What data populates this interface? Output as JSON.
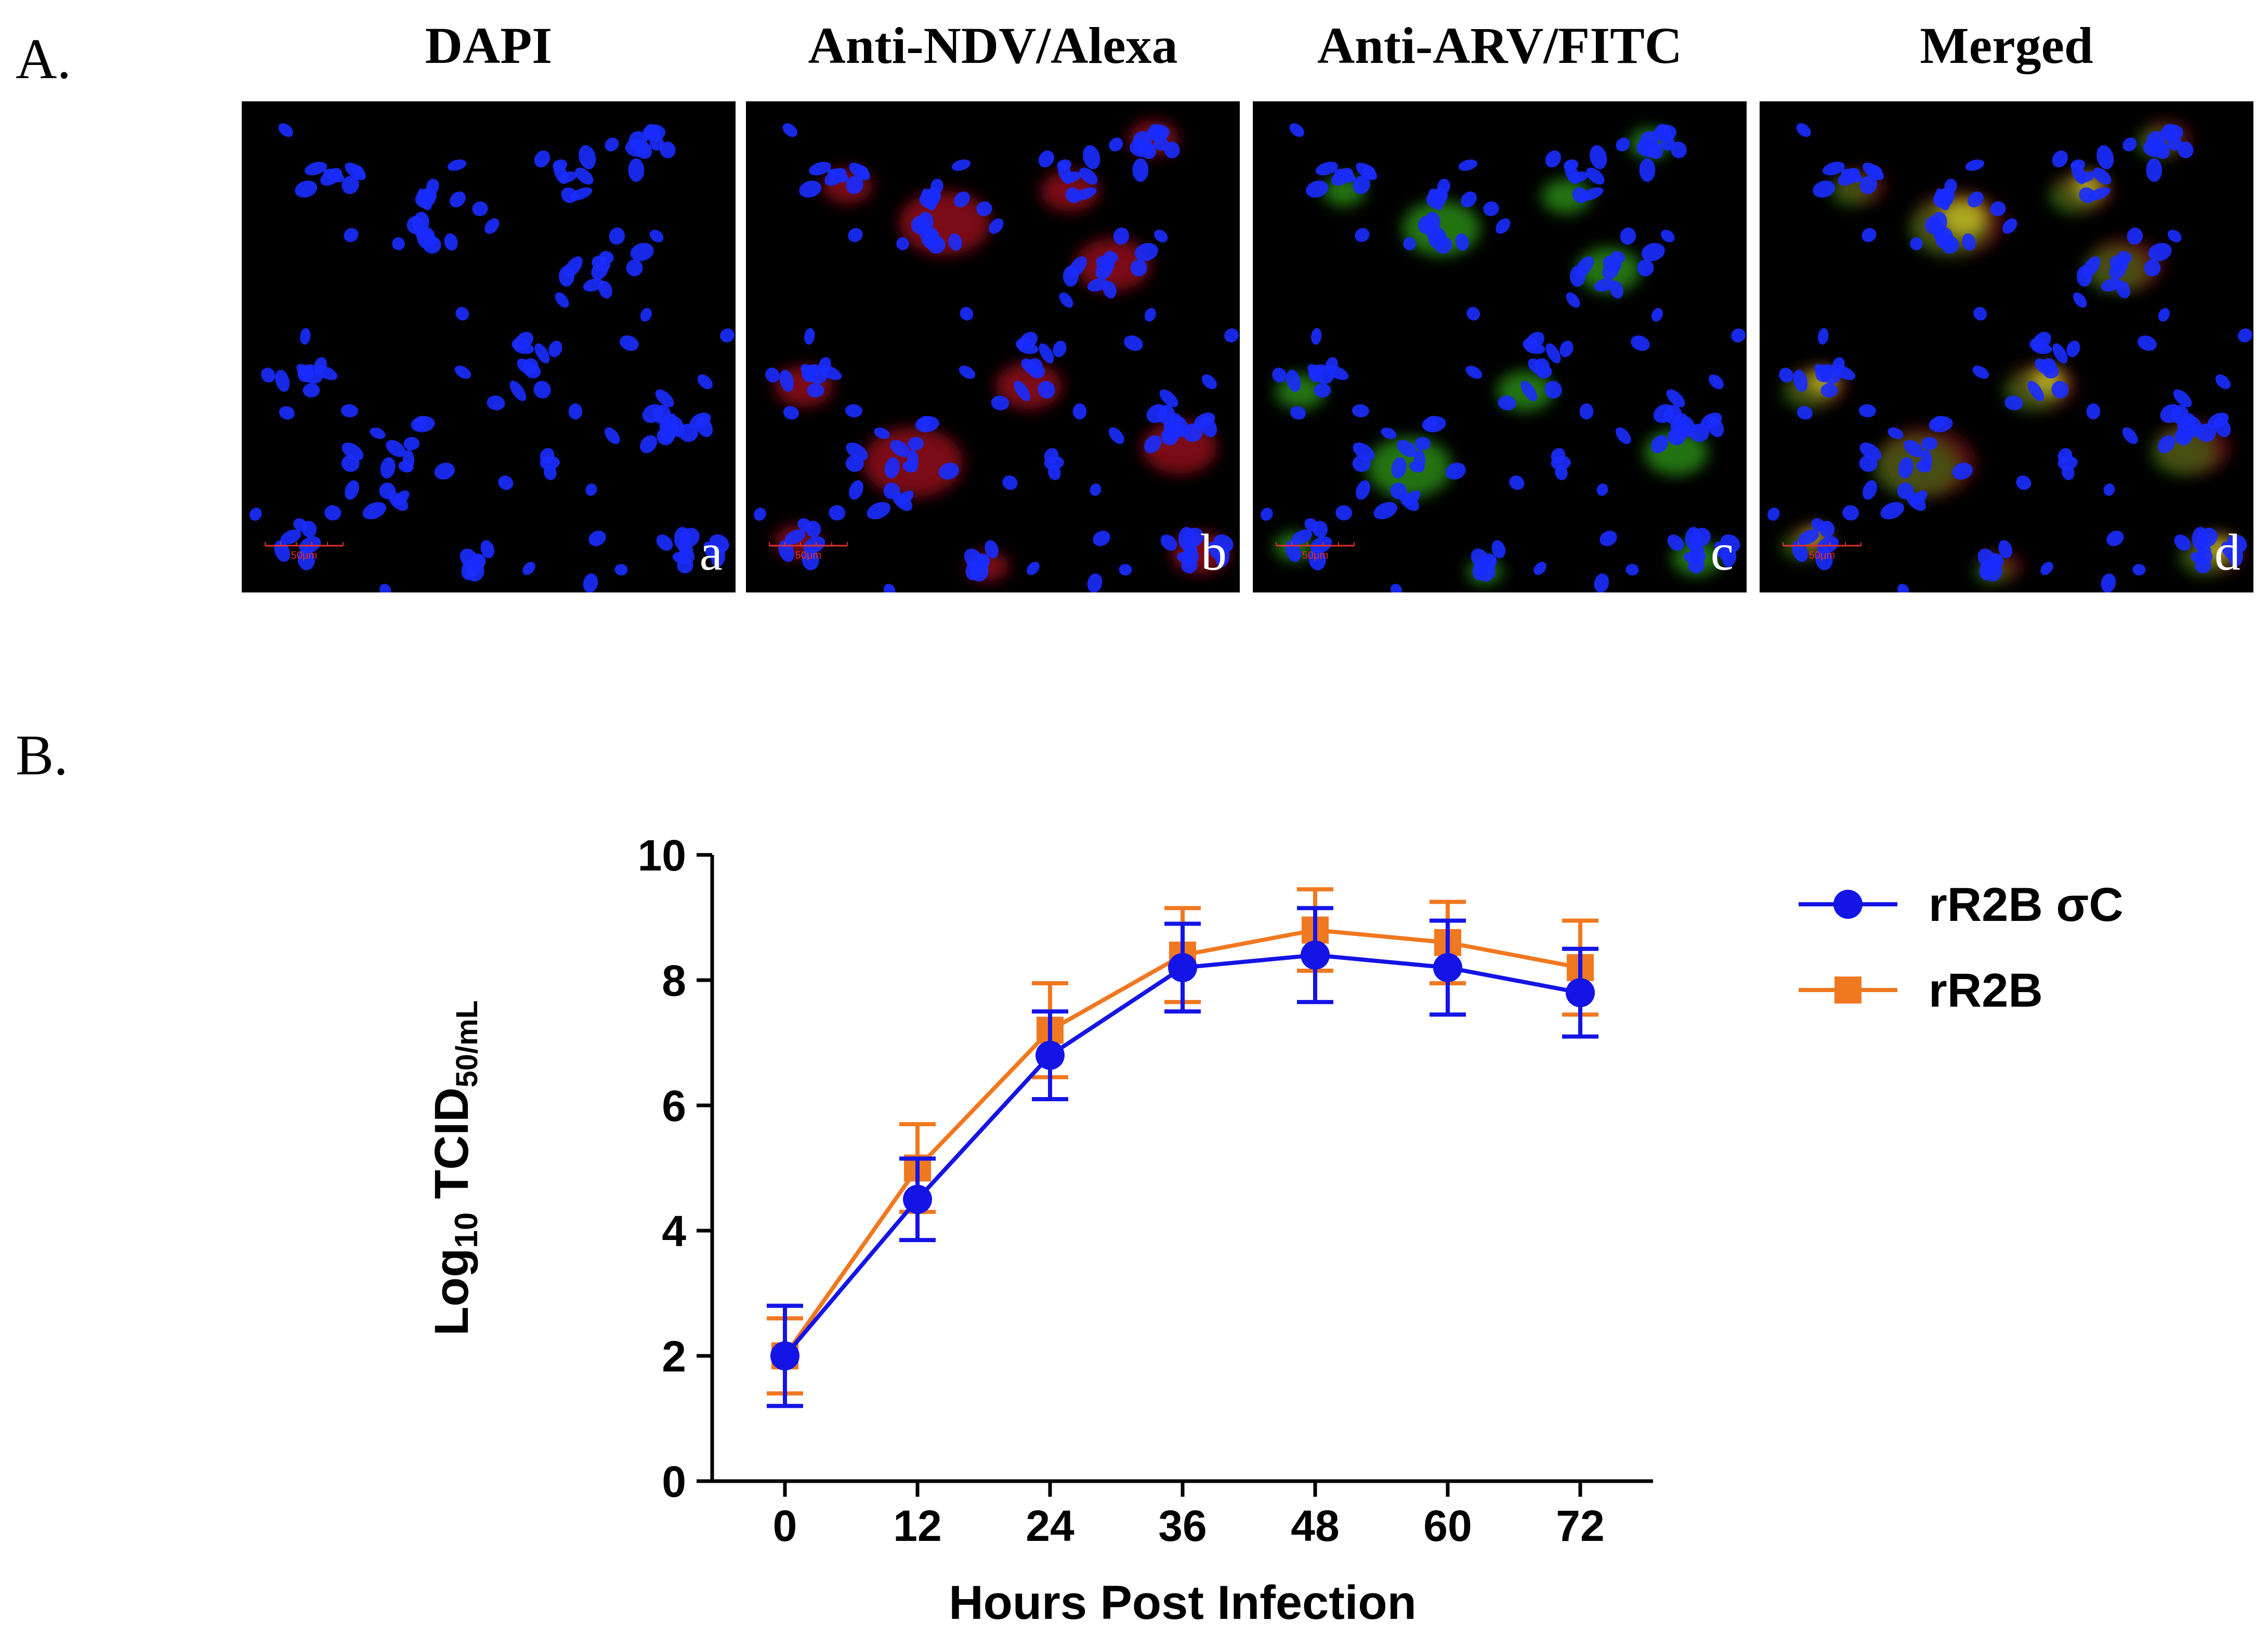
{
  "figure": {
    "panel_a_label": "A.",
    "panel_b_label": "B."
  },
  "panel_a": {
    "columns": [
      {
        "title": "DAPI",
        "sub_label": "a",
        "scale_bar": "50μm",
        "channels": [
          "blue"
        ]
      },
      {
        "title": "Anti-NDV/Alexa",
        "sub_label": "b",
        "scale_bar": "50μm",
        "channels": [
          "blue",
          "red"
        ]
      },
      {
        "title": "Anti-ARV/FITC",
        "sub_label": "c",
        "scale_bar": "50μm",
        "channels": [
          "blue",
          "green"
        ]
      },
      {
        "title": "Merged",
        "sub_label": "d",
        "scale_bar": "50μm",
        "channels": [
          "blue",
          "red",
          "green",
          "yellow"
        ]
      }
    ],
    "colors": {
      "nucleus": "#1a2cff",
      "alexa": "#e0142c",
      "fitc": "#3fd21e",
      "merged": "#d9cf24",
      "scale_bar": "#e03030"
    }
  },
  "chart_data": {
    "type": "line",
    "title": "",
    "xlabel": "Hours Post Infection",
    "ylabel_main": "Log",
    "ylabel_sub1": "10",
    "ylabel_mid": " TCID",
    "ylabel_sub2": "50/mL",
    "x": [
      0,
      12,
      24,
      36,
      48,
      60,
      72
    ],
    "xlim": [
      0,
      72
    ],
    "ylim": [
      0,
      10
    ],
    "yticks": [
      0,
      2,
      4,
      6,
      8,
      10
    ],
    "legend_position": "right",
    "series": [
      {
        "name": "rR2B σC",
        "color": "#1414e6",
        "marker": "circle",
        "values": [
          2.0,
          4.5,
          6.8,
          8.2,
          8.4,
          8.2,
          7.8
        ],
        "errors": [
          0.8,
          0.65,
          0.7,
          0.7,
          0.75,
          0.75,
          0.7
        ]
      },
      {
        "name": "rR2B",
        "color": "#f07820",
        "marker": "square",
        "values": [
          2.0,
          5.0,
          7.2,
          8.4,
          8.8,
          8.6,
          8.2
        ],
        "errors": [
          0.6,
          0.7,
          0.75,
          0.75,
          0.65,
          0.65,
          0.75
        ]
      }
    ]
  }
}
